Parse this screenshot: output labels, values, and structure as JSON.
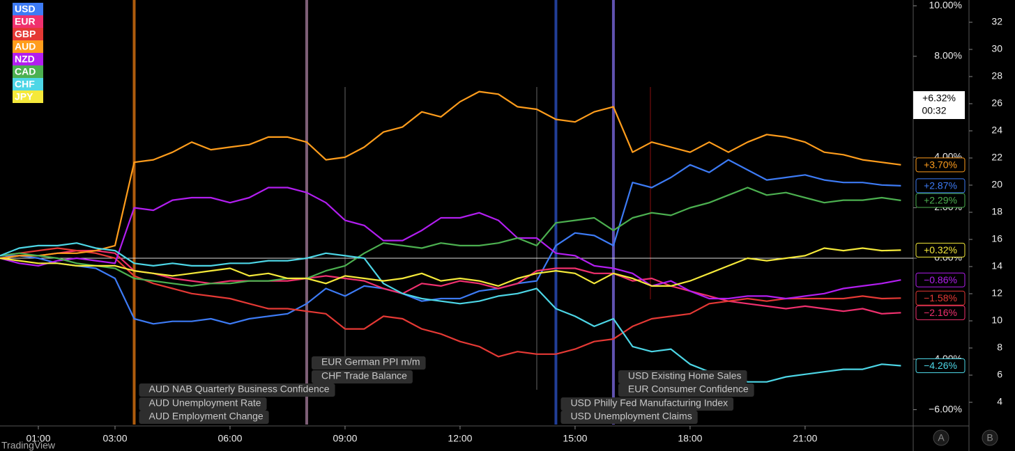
{
  "chart_data": {
    "type": "line",
    "x": [
      0,
      0.5,
      1,
      1.5,
      2,
      2.5,
      3,
      3.5,
      4,
      4.5,
      5,
      5.5,
      6,
      6.5,
      7,
      7.5,
      8,
      8.5,
      9,
      9.5,
      10,
      10.5,
      11,
      11.5,
      12,
      12.5,
      13,
      13.5,
      14,
      14.5,
      15,
      15.5,
      16,
      16.5,
      17,
      17.5,
      18,
      18.5,
      19,
      19.5,
      20,
      20.5,
      21,
      21.5,
      22,
      22.5,
      23,
      23.5
    ],
    "xlim": [
      0,
      23.82
    ],
    "xticks": [
      {
        "value": 1,
        "label": "01:00"
      },
      {
        "value": 3,
        "label": "03:00"
      },
      {
        "value": 6,
        "label": "06:00"
      },
      {
        "value": 9,
        "label": "09:00"
      },
      {
        "value": 12,
        "label": "12:00"
      },
      {
        "value": 15,
        "label": "15:00"
      },
      {
        "value": 18,
        "label": "18:00"
      },
      {
        "value": 21,
        "label": "21:00"
      }
    ],
    "ylim": [
      -6.59,
      10.23
    ],
    "yticks": [
      {
        "value": 10,
        "label": "10.00%"
      },
      {
        "value": 8,
        "label": "8.00%"
      },
      {
        "value": 4,
        "label": "4.00%"
      },
      {
        "value": 2,
        "label": "2.00%"
      },
      {
        "value": 0,
        "label": "0.00%"
      },
      {
        "value": -4,
        "label": "-4.00%"
      },
      {
        "value": -6,
        "label": "−6.00%"
      }
    ],
    "y2lim": [
      2.36,
      33.64
    ],
    "y2ticks": [
      4,
      6,
      8,
      10,
      12,
      14,
      16,
      18,
      20,
      22,
      24,
      26,
      28,
      30,
      32
    ],
    "series": [
      {
        "name": "USD",
        "color": "#3d7bf5",
        "values": [
          0.1,
          0.1,
          0,
          -0.2,
          -0.3,
          -0.4,
          -0.8,
          -2.4,
          -2.6,
          -2.5,
          -2.5,
          -2.4,
          -2.6,
          -2.4,
          -2.3,
          -2.2,
          -1.8,
          -1.2,
          -1.5,
          -1.1,
          -1.2,
          -1.4,
          -1.7,
          -1.6,
          -1.6,
          -1.3,
          -1.2,
          -1.0,
          -0.9,
          0.5,
          1.0,
          0.9,
          0.5,
          3.0,
          2.8,
          3.2,
          3.7,
          3.4,
          3.9,
          3.5,
          3.1,
          3.2,
          3.3,
          3.1,
          3.0,
          3.0,
          2.9,
          2.87
        ],
        "value_labels": [
          null,
          null,
          null,
          null,
          null,
          null,
          null,
          null,
          null,
          null,
          null,
          null,
          null,
          null,
          null,
          null,
          null,
          null,
          null,
          null,
          null,
          null,
          null,
          null,
          null,
          null,
          null,
          null,
          null,
          null,
          null,
          null,
          null,
          null,
          null,
          null,
          null,
          null,
          null,
          null,
          null,
          null,
          null,
          null,
          null,
          null,
          null,
          "+2.87%"
        ]
      },
      {
        "name": "EUR",
        "color": "#f0306e",
        "values": [
          0,
          0.1,
          0.1,
          0.2,
          0.3,
          0.3,
          0.2,
          -0.5,
          -0.6,
          -0.8,
          -0.9,
          -1.0,
          -0.9,
          -0.9,
          -0.9,
          -0.9,
          -0.8,
          -0.7,
          -0.8,
          -0.9,
          -1.2,
          -1.4,
          -1.0,
          -1.1,
          -0.9,
          -1.0,
          -1.2,
          -1.0,
          -0.5,
          -0.4,
          -0.4,
          -0.6,
          -0.6,
          -0.9,
          -0.8,
          -1.1,
          -1.3,
          -1.5,
          -1.7,
          -1.8,
          -1.9,
          -2.0,
          -1.9,
          -2.0,
          -2.1,
          -2.0,
          -2.2,
          -2.16
        ],
        "value_labels": [
          null,
          null,
          null,
          null,
          null,
          null,
          null,
          null,
          null,
          null,
          null,
          null,
          null,
          null,
          null,
          null,
          null,
          null,
          null,
          null,
          null,
          null,
          null,
          null,
          null,
          null,
          null,
          null,
          null,
          null,
          null,
          null,
          null,
          null,
          null,
          null,
          null,
          null,
          null,
          null,
          null,
          null,
          null,
          null,
          null,
          null,
          null,
          "−2.16%"
        ]
      },
      {
        "name": "GBP",
        "color": "#e53935",
        "values": [
          0.1,
          0.2,
          0.3,
          0.4,
          0.3,
          0.2,
          0,
          -0.7,
          -1.0,
          -1.2,
          -1.4,
          -1.5,
          -1.6,
          -1.8,
          -2.0,
          -2.0,
          -2.1,
          -2.2,
          -2.8,
          -2.8,
          -2.3,
          -2.4,
          -2.8,
          -3.0,
          -3.3,
          -3.5,
          -3.9,
          -3.7,
          -3.8,
          -3.8,
          -3.6,
          -3.3,
          -3.2,
          -2.7,
          -2.4,
          -2.3,
          -2.2,
          -1.8,
          -1.7,
          -1.6,
          -1.7,
          -1.6,
          -1.6,
          -1.6,
          -1.6,
          -1.5,
          -1.6,
          -1.58
        ],
        "value_labels": [
          null,
          null,
          null,
          null,
          null,
          null,
          null,
          null,
          null,
          null,
          null,
          null,
          null,
          null,
          null,
          null,
          null,
          null,
          null,
          null,
          null,
          null,
          null,
          null,
          null,
          null,
          null,
          null,
          null,
          null,
          null,
          null,
          null,
          null,
          null,
          null,
          null,
          null,
          null,
          null,
          null,
          null,
          null,
          null,
          null,
          null,
          null,
          "−1.58%"
        ]
      },
      {
        "name": "AUD",
        "color": "#ff9d1c",
        "values": [
          0,
          0.1,
          0.1,
          0.2,
          0.2,
          0.3,
          0.5,
          3.8,
          3.9,
          4.2,
          4.6,
          4.3,
          4.4,
          4.5,
          4.8,
          4.8,
          4.6,
          3.9,
          4.0,
          4.4,
          5.0,
          5.2,
          5.8,
          5.6,
          6.2,
          6.6,
          6.5,
          6.0,
          5.9,
          5.5,
          5.4,
          5.8,
          6.0,
          4.2,
          4.6,
          4.4,
          4.2,
          4.6,
          4.2,
          4.6,
          4.9,
          4.8,
          4.6,
          4.2,
          4.1,
          3.9,
          3.8,
          3.7
        ],
        "value_labels": [
          null,
          null,
          null,
          null,
          null,
          null,
          null,
          null,
          null,
          null,
          null,
          null,
          null,
          null,
          null,
          null,
          null,
          null,
          null,
          null,
          null,
          null,
          null,
          null,
          null,
          null,
          null,
          null,
          null,
          null,
          null,
          null,
          null,
          null,
          null,
          null,
          null,
          null,
          null,
          null,
          null,
          null,
          null,
          null,
          null,
          null,
          null,
          "+3.70%"
        ]
      },
      {
        "name": "NZD",
        "color": "#b21ef0",
        "values": [
          0,
          -0.2,
          -0.3,
          -0.1,
          0,
          -0.1,
          -0.2,
          2.0,
          1.9,
          2.3,
          2.4,
          2.4,
          2.2,
          2.4,
          2.8,
          2.8,
          2.6,
          2.2,
          1.5,
          1.3,
          0.7,
          0.7,
          1.1,
          1.6,
          1.6,
          1.8,
          1.5,
          0.8,
          0.8,
          0.2,
          0.1,
          -0.3,
          -0.4,
          -0.6,
          -1.1,
          -0.9,
          -1.3,
          -1.6,
          -1.6,
          -1.5,
          -1.5,
          -1.6,
          -1.5,
          -1.4,
          -1.2,
          -1.1,
          -1.0,
          -0.86
        ],
        "value_labels": [
          null,
          null,
          null,
          null,
          null,
          null,
          null,
          null,
          null,
          null,
          null,
          null,
          null,
          null,
          null,
          null,
          null,
          null,
          null,
          null,
          null,
          null,
          null,
          null,
          null,
          null,
          null,
          null,
          null,
          null,
          null,
          null,
          null,
          null,
          null,
          null,
          null,
          null,
          null,
          null,
          null,
          null,
          null,
          null,
          null,
          null,
          null,
          "−0.86%"
        ]
      },
      {
        "name": "CAD",
        "color": "#4cb050",
        "values": [
          0.1,
          0.2,
          0.1,
          0,
          -0.2,
          -0.3,
          -0.4,
          -0.8,
          -0.9,
          -1.0,
          -1.1,
          -1.0,
          -1.0,
          -0.9,
          -0.9,
          -0.8,
          -0.8,
          -0.5,
          -0.3,
          0.2,
          0.6,
          0.5,
          0.4,
          0.6,
          0.5,
          0.5,
          0.6,
          0.8,
          0.5,
          1.4,
          1.5,
          1.6,
          1.1,
          1.6,
          1.8,
          1.7,
          2.0,
          2.2,
          2.5,
          2.8,
          2.5,
          2.6,
          2.4,
          2.2,
          2.3,
          2.3,
          2.4,
          2.29
        ],
        "value_labels": [
          null,
          null,
          null,
          null,
          null,
          null,
          null,
          null,
          null,
          null,
          null,
          null,
          null,
          null,
          null,
          null,
          null,
          null,
          null,
          null,
          null,
          null,
          null,
          null,
          null,
          null,
          null,
          null,
          null,
          null,
          null,
          null,
          null,
          null,
          null,
          null,
          null,
          null,
          null,
          null,
          null,
          null,
          null,
          null,
          null,
          null,
          null,
          "+2.29%"
        ]
      },
      {
        "name": "CHF",
        "color": "#4dd6e6",
        "values": [
          0.1,
          0.4,
          0.5,
          0.5,
          0.6,
          0.4,
          0.3,
          -0.2,
          -0.3,
          -0.2,
          -0.3,
          -0.3,
          -0.2,
          -0.2,
          -0.1,
          -0.1,
          0,
          0.2,
          0.1,
          0,
          -1.0,
          -1.4,
          -1.6,
          -1.7,
          -1.8,
          -1.7,
          -1.5,
          -1.4,
          -1.2,
          -2.0,
          -2.3,
          -2.7,
          -2.4,
          -3.5,
          -3.7,
          -3.6,
          -4.2,
          -4.5,
          -4.6,
          -4.9,
          -4.9,
          -4.7,
          -4.6,
          -4.5,
          -4.4,
          -4.4,
          -4.2,
          -4.26
        ],
        "value_labels": [
          null,
          null,
          null,
          null,
          null,
          null,
          null,
          null,
          null,
          null,
          null,
          null,
          null,
          null,
          null,
          null,
          null,
          null,
          null,
          null,
          null,
          null,
          null,
          null,
          null,
          null,
          null,
          null,
          null,
          null,
          null,
          null,
          null,
          null,
          null,
          null,
          null,
          null,
          null,
          null,
          null,
          null,
          null,
          null,
          null,
          null,
          null,
          "−4.26%"
        ]
      },
      {
        "name": "JPY",
        "color": "#f5e93a",
        "values": [
          0,
          -0.1,
          -0.2,
          -0.2,
          -0.3,
          -0.3,
          -0.3,
          -0.5,
          -0.6,
          -0.7,
          -0.6,
          -0.5,
          -0.4,
          -0.7,
          -0.6,
          -0.8,
          -0.8,
          -1.0,
          -0.7,
          -0.8,
          -0.9,
          -0.8,
          -0.6,
          -0.9,
          -0.8,
          -0.9,
          -1.1,
          -0.8,
          -0.6,
          -0.5,
          -0.6,
          -1.0,
          -0.6,
          -0.8,
          -1.1,
          -1.1,
          -0.9,
          -0.6,
          -0.3,
          0,
          -0.1,
          0,
          0.1,
          0.4,
          0.3,
          0.4,
          0.3,
          0.32
        ],
        "value_labels": [
          null,
          null,
          null,
          null,
          null,
          null,
          null,
          null,
          null,
          null,
          null,
          null,
          null,
          null,
          null,
          null,
          null,
          null,
          null,
          null,
          null,
          null,
          null,
          null,
          null,
          null,
          null,
          null,
          null,
          null,
          null,
          null,
          null,
          null,
          null,
          null,
          null,
          null,
          null,
          null,
          null,
          null,
          null,
          null,
          null,
          null,
          null,
          "+0.32%"
        ]
      }
    ],
    "events": [
      {
        "x": 3.5,
        "color": "#c2660f",
        "labels": [
          "AUD NAB Quarterly Business Confidence",
          "AUD Unemployment Rate",
          "AUD Employment Change"
        ]
      },
      {
        "x": 8,
        "color": "#8c6a84",
        "labels": [
          "EUR German PPI m/m",
          "CHF Trade Balance"
        ]
      },
      {
        "x": 14.5,
        "color": "#2545a8",
        "labels": [
          "USD Philly Fed Manufacturing Index",
          "USD Unemployment Claims"
        ]
      },
      {
        "x": 16,
        "color": "#6b5bc4",
        "labels": [
          "USD Existing Home Sales",
          "EUR Consumer Confidence"
        ]
      }
    ],
    "price_label": "+6.32%",
    "countdown": "00:32",
    "scale_buttons": [
      "A",
      "B"
    ],
    "brand": "TradingView"
  }
}
